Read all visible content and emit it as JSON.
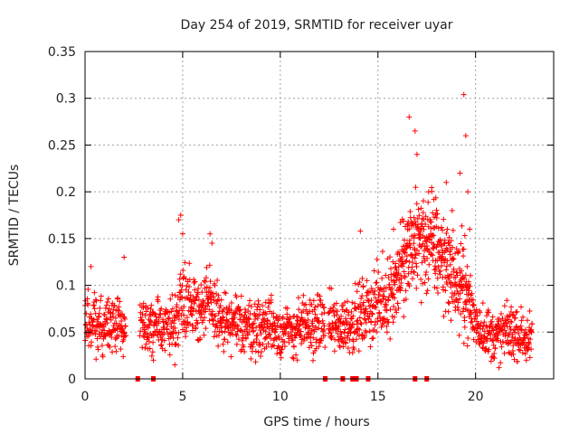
{
  "chart_data": {
    "type": "scatter",
    "title": "Day 254 of 2019, SRMTID for receiver uyar",
    "xlabel": "GPS time / hours",
    "ylabel": "SRMTID / TECUs",
    "xlim": [
      0,
      24
    ],
    "ylim": [
      0,
      0.35
    ],
    "x_ticks": [
      0,
      5,
      10,
      15,
      20
    ],
    "x_tick_labels": [
      "0",
      "5",
      "10",
      "15",
      "20"
    ],
    "y_ticks": [
      0,
      0.05,
      0.1,
      0.15,
      0.2,
      0.25,
      0.3,
      0.35
    ],
    "y_tick_labels": [
      "0",
      "0.05",
      "0.1",
      "0.15",
      "0.2",
      "0.25",
      "0.3",
      "0.35"
    ],
    "grid": true,
    "marker": "+",
    "color": "#ff0000",
    "trend": [
      [
        0.0,
        0.055
      ],
      [
        0.5,
        0.06
      ],
      [
        1.0,
        0.055
      ],
      [
        1.5,
        0.06
      ],
      [
        2.0,
        0.055
      ],
      [
        2.9,
        0.06
      ],
      [
        3.5,
        0.05
      ],
      [
        4.0,
        0.06
      ],
      [
        4.5,
        0.055
      ],
      [
        5.0,
        0.09
      ],
      [
        5.5,
        0.08
      ],
      [
        6.0,
        0.075
      ],
      [
        6.5,
        0.08
      ],
      [
        7.0,
        0.06
      ],
      [
        7.5,
        0.055
      ],
      [
        8.0,
        0.06
      ],
      [
        8.5,
        0.055
      ],
      [
        9.0,
        0.055
      ],
      [
        9.5,
        0.06
      ],
      [
        10.0,
        0.05
      ],
      [
        10.5,
        0.05
      ],
      [
        11.0,
        0.055
      ],
      [
        11.5,
        0.055
      ],
      [
        12.0,
        0.06
      ],
      [
        12.5,
        0.06
      ],
      [
        13.0,
        0.055
      ],
      [
        13.5,
        0.06
      ],
      [
        14.0,
        0.065
      ],
      [
        14.5,
        0.075
      ],
      [
        15.0,
        0.08
      ],
      [
        15.5,
        0.09
      ],
      [
        16.0,
        0.105
      ],
      [
        16.5,
        0.125
      ],
      [
        17.0,
        0.15
      ],
      [
        17.5,
        0.14
      ],
      [
        18.0,
        0.14
      ],
      [
        18.5,
        0.12
      ],
      [
        19.0,
        0.1
      ],
      [
        19.5,
        0.09
      ],
      [
        20.0,
        0.06
      ],
      [
        20.5,
        0.05
      ],
      [
        21.0,
        0.045
      ],
      [
        21.5,
        0.05
      ],
      [
        22.0,
        0.05
      ],
      [
        22.5,
        0.045
      ],
      [
        22.9,
        0.04
      ]
    ],
    "spikes": [
      [
        0.3,
        0.12
      ],
      [
        2.0,
        0.13
      ],
      [
        4.8,
        0.17
      ],
      [
        4.9,
        0.175
      ],
      [
        5.0,
        0.155
      ],
      [
        6.4,
        0.155
      ],
      [
        6.5,
        0.145
      ],
      [
        14.1,
        0.158
      ],
      [
        15.8,
        0.16
      ],
      [
        16.6,
        0.28
      ],
      [
        16.9,
        0.265
      ],
      [
        17.0,
        0.24
      ],
      [
        17.6,
        0.2
      ],
      [
        18.5,
        0.21
      ],
      [
        18.8,
        0.18
      ],
      [
        19.2,
        0.22
      ],
      [
        19.4,
        0.304
      ],
      [
        19.5,
        0.26
      ],
      [
        19.6,
        0.2
      ],
      [
        19.7,
        0.16
      ],
      [
        3.5,
        0.02
      ],
      [
        4.6,
        0.015
      ],
      [
        22.6,
        0.02
      ],
      [
        21.2,
        0.012
      ]
    ],
    "zero_markers": [
      2.7,
      3.5,
      12.3,
      13.2,
      13.7,
      13.9,
      14.5,
      16.9,
      17.5
    ]
  }
}
